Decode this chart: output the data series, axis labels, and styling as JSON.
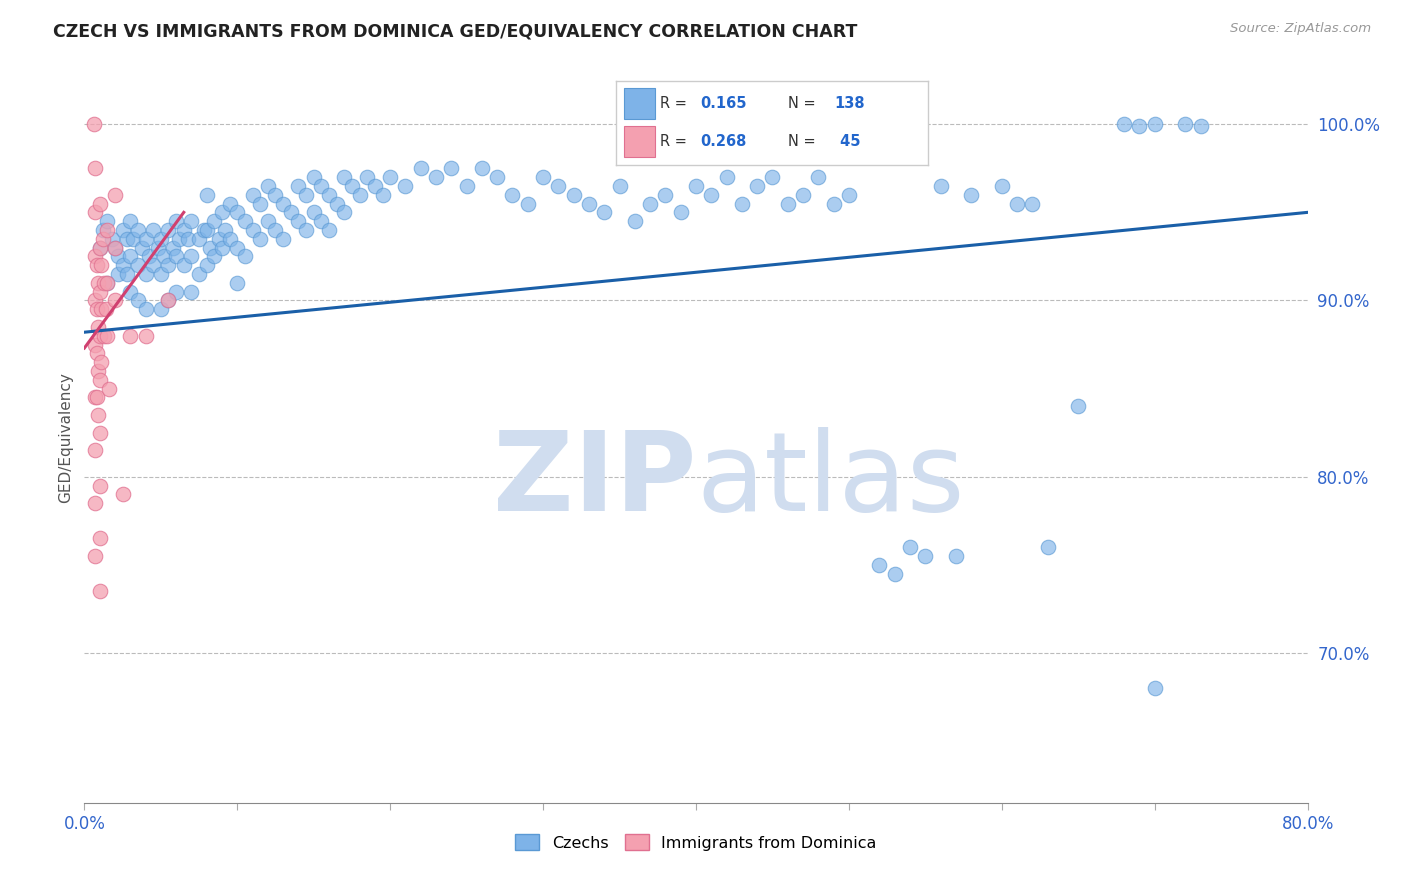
{
  "title": "CZECH VS IMMIGRANTS FROM DOMINICA GED/EQUIVALENCY CORRELATION CHART",
  "source": "Source: ZipAtlas.com",
  "ylabel": "GED/Equivalency",
  "ytick_labels": [
    "70.0%",
    "80.0%",
    "90.0%",
    "100.0%"
  ],
  "ytick_values": [
    0.7,
    0.8,
    0.9,
    1.0
  ],
  "xlim": [
    0.0,
    0.8
  ],
  "ylim": [
    0.615,
    1.03
  ],
  "blue_color": "#7EB3E8",
  "blue_edge_color": "#5A99D4",
  "pink_color": "#F4A0B0",
  "pink_edge_color": "#E07090",
  "trendline_blue_color": "#1A5FA8",
  "trendline_pink_color": "#D04070",
  "watermark_color": "#D0DDEF",
  "blue_scatter": [
    [
      0.01,
      0.93
    ],
    [
      0.012,
      0.94
    ],
    [
      0.015,
      0.945
    ],
    [
      0.015,
      0.91
    ],
    [
      0.018,
      0.935
    ],
    [
      0.02,
      0.93
    ],
    [
      0.022,
      0.925
    ],
    [
      0.022,
      0.915
    ],
    [
      0.025,
      0.94
    ],
    [
      0.025,
      0.92
    ],
    [
      0.028,
      0.935
    ],
    [
      0.028,
      0.915
    ],
    [
      0.03,
      0.945
    ],
    [
      0.03,
      0.925
    ],
    [
      0.03,
      0.905
    ],
    [
      0.032,
      0.935
    ],
    [
      0.035,
      0.94
    ],
    [
      0.035,
      0.92
    ],
    [
      0.035,
      0.9
    ],
    [
      0.038,
      0.93
    ],
    [
      0.04,
      0.935
    ],
    [
      0.04,
      0.915
    ],
    [
      0.04,
      0.895
    ],
    [
      0.042,
      0.925
    ],
    [
      0.045,
      0.94
    ],
    [
      0.045,
      0.92
    ],
    [
      0.048,
      0.93
    ],
    [
      0.05,
      0.935
    ],
    [
      0.05,
      0.915
    ],
    [
      0.05,
      0.895
    ],
    [
      0.052,
      0.925
    ],
    [
      0.055,
      0.94
    ],
    [
      0.055,
      0.92
    ],
    [
      0.055,
      0.9
    ],
    [
      0.058,
      0.93
    ],
    [
      0.06,
      0.945
    ],
    [
      0.06,
      0.925
    ],
    [
      0.06,
      0.905
    ],
    [
      0.062,
      0.935
    ],
    [
      0.065,
      0.94
    ],
    [
      0.065,
      0.92
    ],
    [
      0.068,
      0.935
    ],
    [
      0.07,
      0.945
    ],
    [
      0.07,
      0.925
    ],
    [
      0.07,
      0.905
    ],
    [
      0.075,
      0.935
    ],
    [
      0.075,
      0.915
    ],
    [
      0.078,
      0.94
    ],
    [
      0.08,
      0.96
    ],
    [
      0.08,
      0.94
    ],
    [
      0.08,
      0.92
    ],
    [
      0.082,
      0.93
    ],
    [
      0.085,
      0.945
    ],
    [
      0.085,
      0.925
    ],
    [
      0.088,
      0.935
    ],
    [
      0.09,
      0.95
    ],
    [
      0.09,
      0.93
    ],
    [
      0.092,
      0.94
    ],
    [
      0.095,
      0.955
    ],
    [
      0.095,
      0.935
    ],
    [
      0.1,
      0.95
    ],
    [
      0.1,
      0.93
    ],
    [
      0.1,
      0.91
    ],
    [
      0.105,
      0.945
    ],
    [
      0.105,
      0.925
    ],
    [
      0.11,
      0.96
    ],
    [
      0.11,
      0.94
    ],
    [
      0.115,
      0.955
    ],
    [
      0.115,
      0.935
    ],
    [
      0.12,
      0.965
    ],
    [
      0.12,
      0.945
    ],
    [
      0.125,
      0.96
    ],
    [
      0.125,
      0.94
    ],
    [
      0.13,
      0.955
    ],
    [
      0.13,
      0.935
    ],
    [
      0.135,
      0.95
    ],
    [
      0.14,
      0.965
    ],
    [
      0.14,
      0.945
    ],
    [
      0.145,
      0.96
    ],
    [
      0.145,
      0.94
    ],
    [
      0.15,
      0.97
    ],
    [
      0.15,
      0.95
    ],
    [
      0.155,
      0.965
    ],
    [
      0.155,
      0.945
    ],
    [
      0.16,
      0.96
    ],
    [
      0.16,
      0.94
    ],
    [
      0.165,
      0.955
    ],
    [
      0.17,
      0.97
    ],
    [
      0.17,
      0.95
    ],
    [
      0.175,
      0.965
    ],
    [
      0.18,
      0.96
    ],
    [
      0.185,
      0.97
    ],
    [
      0.19,
      0.965
    ],
    [
      0.195,
      0.96
    ],
    [
      0.2,
      0.97
    ],
    [
      0.21,
      0.965
    ],
    [
      0.22,
      0.975
    ],
    [
      0.23,
      0.97
    ],
    [
      0.24,
      0.975
    ],
    [
      0.25,
      0.965
    ],
    [
      0.26,
      0.975
    ],
    [
      0.27,
      0.97
    ],
    [
      0.28,
      0.96
    ],
    [
      0.29,
      0.955
    ],
    [
      0.3,
      0.97
    ],
    [
      0.31,
      0.965
    ],
    [
      0.32,
      0.96
    ],
    [
      0.33,
      0.955
    ],
    [
      0.34,
      0.95
    ],
    [
      0.35,
      0.965
    ],
    [
      0.36,
      0.945
    ],
    [
      0.37,
      0.955
    ],
    [
      0.38,
      0.96
    ],
    [
      0.39,
      0.95
    ],
    [
      0.4,
      0.965
    ],
    [
      0.41,
      0.96
    ],
    [
      0.42,
      0.97
    ],
    [
      0.43,
      0.955
    ],
    [
      0.44,
      0.965
    ],
    [
      0.45,
      0.97
    ],
    [
      0.46,
      0.955
    ],
    [
      0.47,
      0.96
    ],
    [
      0.48,
      0.97
    ],
    [
      0.49,
      0.955
    ],
    [
      0.5,
      0.96
    ],
    [
      0.52,
      0.75
    ],
    [
      0.53,
      0.745
    ],
    [
      0.54,
      0.76
    ],
    [
      0.55,
      0.755
    ],
    [
      0.56,
      0.965
    ],
    [
      0.57,
      0.755
    ],
    [
      0.58,
      0.96
    ],
    [
      0.6,
      0.965
    ],
    [
      0.61,
      0.955
    ],
    [
      0.62,
      0.955
    ],
    [
      0.63,
      0.76
    ],
    [
      0.65,
      0.84
    ],
    [
      0.68,
      1.0
    ],
    [
      0.69,
      0.999
    ],
    [
      0.7,
      1.0
    ],
    [
      0.72,
      1.0
    ],
    [
      0.73,
      0.999
    ],
    [
      0.7,
      0.68
    ]
  ],
  "pink_scatter": [
    [
      0.006,
      1.0
    ],
    [
      0.007,
      0.975
    ],
    [
      0.007,
      0.95
    ],
    [
      0.007,
      0.925
    ],
    [
      0.007,
      0.9
    ],
    [
      0.007,
      0.875
    ],
    [
      0.007,
      0.845
    ],
    [
      0.007,
      0.815
    ],
    [
      0.007,
      0.785
    ],
    [
      0.007,
      0.755
    ],
    [
      0.008,
      0.92
    ],
    [
      0.008,
      0.895
    ],
    [
      0.008,
      0.87
    ],
    [
      0.008,
      0.845
    ],
    [
      0.009,
      0.91
    ],
    [
      0.009,
      0.885
    ],
    [
      0.009,
      0.86
    ],
    [
      0.009,
      0.835
    ],
    [
      0.01,
      0.955
    ],
    [
      0.01,
      0.93
    ],
    [
      0.01,
      0.905
    ],
    [
      0.01,
      0.88
    ],
    [
      0.01,
      0.855
    ],
    [
      0.01,
      0.825
    ],
    [
      0.01,
      0.795
    ],
    [
      0.01,
      0.765
    ],
    [
      0.01,
      0.735
    ],
    [
      0.011,
      0.92
    ],
    [
      0.011,
      0.895
    ],
    [
      0.011,
      0.865
    ],
    [
      0.012,
      0.935
    ],
    [
      0.013,
      0.91
    ],
    [
      0.013,
      0.88
    ],
    [
      0.014,
      0.895
    ],
    [
      0.015,
      0.94
    ],
    [
      0.015,
      0.91
    ],
    [
      0.015,
      0.88
    ],
    [
      0.016,
      0.85
    ],
    [
      0.02,
      0.96
    ],
    [
      0.02,
      0.93
    ],
    [
      0.02,
      0.9
    ],
    [
      0.025,
      0.79
    ],
    [
      0.03,
      0.88
    ],
    [
      0.04,
      0.88
    ],
    [
      0.055,
      0.9
    ]
  ],
  "blue_trend_x": [
    0.0,
    0.8
  ],
  "blue_trend_y": [
    0.882,
    0.95
  ],
  "pink_trend_x": [
    0.0,
    0.065
  ],
  "pink_trend_y": [
    0.873,
    0.95
  ]
}
